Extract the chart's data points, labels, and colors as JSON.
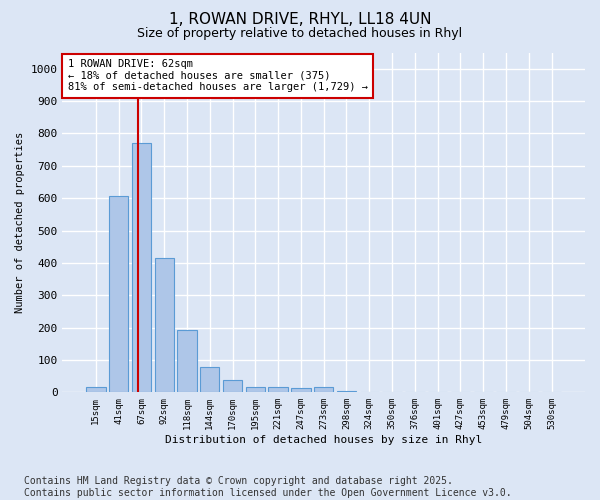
{
  "title": "1, ROWAN DRIVE, RHYL, LL18 4UN",
  "subtitle": "Size of property relative to detached houses in Rhyl",
  "xlabel": "Distribution of detached houses by size in Rhyl",
  "ylabel": "Number of detached properties",
  "categories": [
    "15sqm",
    "41sqm",
    "67sqm",
    "92sqm",
    "118sqm",
    "144sqm",
    "170sqm",
    "195sqm",
    "221sqm",
    "247sqm",
    "273sqm",
    "298sqm",
    "324sqm",
    "350sqm",
    "376sqm",
    "401sqm",
    "427sqm",
    "453sqm",
    "479sqm",
    "504sqm",
    "530sqm"
  ],
  "values": [
    15,
    607,
    770,
    415,
    192,
    77,
    38,
    18,
    18,
    12,
    15,
    5,
    0,
    0,
    0,
    0,
    0,
    0,
    0,
    0,
    0
  ],
  "bar_color": "#aec6e8",
  "bar_edge_color": "#5b9bd5",
  "vline_x": 1.85,
  "vline_color": "#cc0000",
  "annotation_text": "1 ROWAN DRIVE: 62sqm\n← 18% of detached houses are smaller (375)\n81% of semi-detached houses are larger (1,729) →",
  "annotation_box_color": "#ffffff",
  "annotation_box_edge": "#cc0000",
  "ylim": [
    0,
    1050
  ],
  "yticks": [
    0,
    100,
    200,
    300,
    400,
    500,
    600,
    700,
    800,
    900,
    1000
  ],
  "figure_bg_color": "#dce6f5",
  "plot_bg_color": "#dce6f5",
  "grid_color": "#ffffff",
  "footer": "Contains HM Land Registry data © Crown copyright and database right 2025.\nContains public sector information licensed under the Open Government Licence v3.0.",
  "title_fontsize": 11,
  "subtitle_fontsize": 9,
  "footer_fontsize": 7
}
